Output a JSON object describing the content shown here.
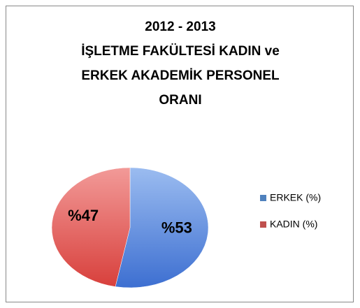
{
  "chart_data": {
    "type": "pie",
    "title": [
      "2012 - 2013",
      "İŞLETME FAKÜLTESİ KADIN ve",
      "ERKEK AKADEMİK PERSONEL",
      "ORANI"
    ],
    "categories": [
      "ERKEK (%)",
      "KADIN (%)"
    ],
    "values": [
      53,
      47
    ],
    "value_labels": [
      "%53",
      "%47"
    ],
    "colors": [
      "#4f81bd",
      "#c0504d"
    ],
    "legend": "right"
  }
}
